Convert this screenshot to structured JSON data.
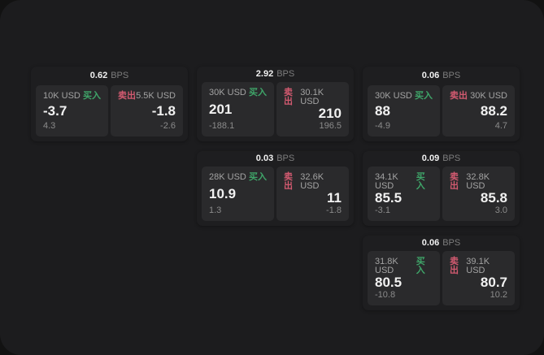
{
  "colors": {
    "page_bg": "#121212",
    "surface_bg": "#1c1c1e",
    "card_bg": "#1e1e20",
    "panel_bg": "#2a2a2c",
    "buy_green": "#3fa569",
    "sell_red": "#d25a70",
    "text_primary": "#f1f1f1",
    "text_secondary": "#a3a3a3",
    "text_muted": "#7d7d7d",
    "text_muted2": "#8b8b8b"
  },
  "labels": {
    "bps_suffix": "BPS",
    "buy": "买入",
    "sell": "卖出"
  },
  "cards": [
    {
      "bps": "0.62",
      "grid": {
        "col": 1,
        "row": 1
      },
      "buy": {
        "size": "10K USD",
        "price": "-3.7",
        "delta": "4.3"
      },
      "sell": {
        "size": "5.5K USD",
        "price": "-1.8",
        "delta": "-2.6"
      }
    },
    {
      "bps": "2.92",
      "grid": {
        "col": 2,
        "row": 1
      },
      "buy": {
        "size": "30K USD",
        "price": "201",
        "delta": "-188.1"
      },
      "sell": {
        "size": "30.1K USD",
        "price": "210",
        "delta": "196.5"
      }
    },
    {
      "bps": "0.06",
      "grid": {
        "col": 3,
        "row": 1
      },
      "buy": {
        "size": "30K USD",
        "price": "88",
        "delta": "-4.9"
      },
      "sell": {
        "size": "30K USD",
        "price": "88.2",
        "delta": "4.7"
      }
    },
    {
      "bps": "0.03",
      "grid": {
        "col": 2,
        "row": 2
      },
      "buy": {
        "size": "28K USD",
        "price": "10.9",
        "delta": "1.3"
      },
      "sell": {
        "size": "32.6K USD",
        "price": "11",
        "delta": "-1.8"
      }
    },
    {
      "bps": "0.09",
      "grid": {
        "col": 3,
        "row": 2
      },
      "buy": {
        "size": "34.1K USD",
        "price": "85.5",
        "delta": "-3.1"
      },
      "sell": {
        "size": "32.8K USD",
        "price": "85.8",
        "delta": "3.0"
      }
    },
    {
      "bps": "0.06",
      "grid": {
        "col": 3,
        "row": 3
      },
      "buy": {
        "size": "31.8K USD",
        "price": "80.5",
        "delta": "-10.8"
      },
      "sell": {
        "size": "39.1K USD",
        "price": "80.7",
        "delta": "10.2"
      }
    }
  ]
}
